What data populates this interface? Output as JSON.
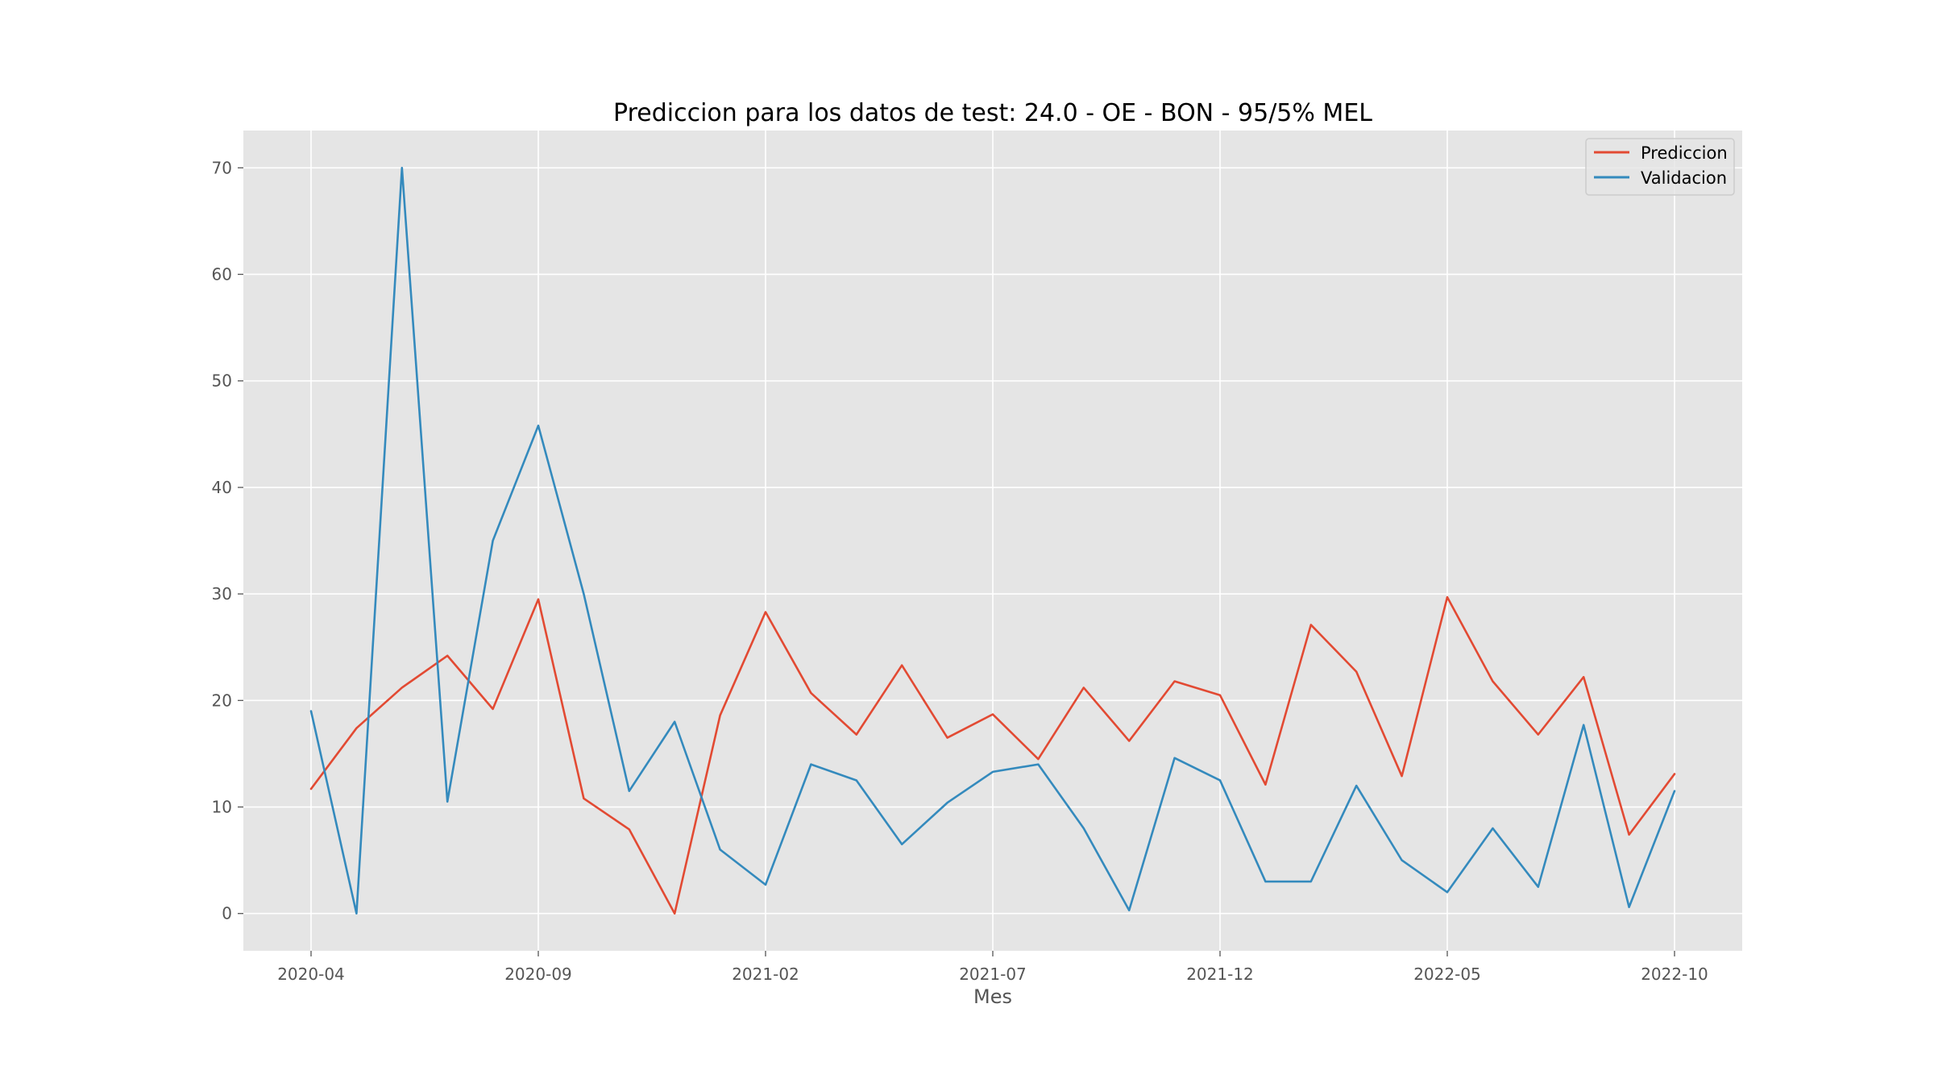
{
  "chart_data": {
    "type": "line",
    "title": "Prediccion para los datos de test: 24.0 - OE - BON - 95/5% MEL",
    "xlabel": "Mes",
    "ylabel": "",
    "x": [
      "2020-04",
      "2020-05",
      "2020-06",
      "2020-07",
      "2020-08",
      "2020-09",
      "2020-10",
      "2020-11",
      "2020-12",
      "2021-01",
      "2021-02",
      "2021-03",
      "2021-04",
      "2021-05",
      "2021-06",
      "2021-07",
      "2021-08",
      "2021-09",
      "2021-10",
      "2021-11",
      "2021-12",
      "2022-01",
      "2022-02",
      "2022-03",
      "2022-04",
      "2022-05",
      "2022-06",
      "2022-07",
      "2022-08",
      "2022-09",
      "2022-10"
    ],
    "xticks": [
      "2020-04",
      "2020-09",
      "2021-02",
      "2021-07",
      "2021-12",
      "2022-05",
      "2022-10"
    ],
    "yticks": [
      0,
      10,
      20,
      30,
      40,
      50,
      60,
      70
    ],
    "ylim": [
      -3.5,
      73.5
    ],
    "grid": true,
    "legend_position": "top-right",
    "series": [
      {
        "name": "Prediccion",
        "color": "#E24A33",
        "values": [
          11.7,
          17.4,
          21.2,
          24.2,
          19.2,
          29.5,
          10.8,
          7.9,
          0.0,
          18.6,
          28.3,
          20.7,
          16.8,
          23.3,
          16.5,
          18.7,
          14.5,
          21.2,
          16.2,
          21.8,
          20.5,
          12.1,
          27.1,
          22.7,
          12.9,
          29.7,
          21.8,
          16.8,
          22.2,
          7.4,
          13.1
        ]
      },
      {
        "name": "Validacion",
        "color": "#348ABD",
        "values": [
          19.0,
          0.0,
          70.0,
          10.5,
          35.0,
          45.8,
          30.0,
          11.5,
          18.0,
          6.0,
          2.7,
          14.0,
          12.5,
          6.5,
          10.4,
          13.3,
          14.0,
          8.0,
          0.3,
          14.6,
          12.5,
          3.0,
          3.0,
          12.0,
          5.0,
          2.0,
          8.0,
          2.5,
          17.7,
          0.6,
          11.5
        ]
      }
    ]
  }
}
